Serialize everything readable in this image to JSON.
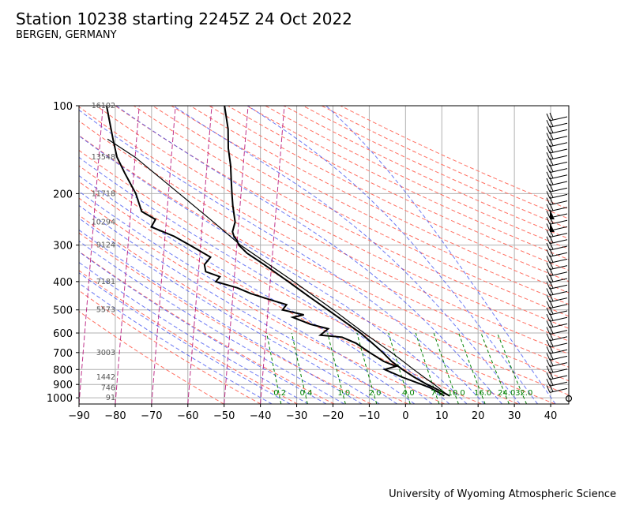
{
  "header": {
    "title": "Station 10238 starting 2245Z 24 Oct 2022",
    "subtitle": "BERGEN, GERMANY"
  },
  "footer": {
    "credit": "University of Wyoming Atmospheric Science"
  },
  "colors": {
    "grid": "#b0b0b0",
    "dry_adiabat": "#ff6f61",
    "moist_adiabat": "#3b4cf0",
    "mixing_ratio": "#008000",
    "isotherm": "#b0006e",
    "profile": "#000000",
    "height_label": "#555555"
  },
  "chart_data": {
    "type": "skew-t",
    "xlim": [
      -90,
      45
    ],
    "ylim_hpa": [
      1050,
      100
    ],
    "y_scale": "log",
    "grid": true,
    "x_ticks": [
      -90,
      -80,
      -70,
      -60,
      -50,
      -40,
      -30,
      -20,
      -10,
      0,
      10,
      20,
      30,
      40
    ],
    "x_tick_labels": [
      "−90",
      "−80",
      "−70",
      "−60",
      "−50",
      "−40",
      "−30",
      "−20",
      "−10",
      "0",
      "10",
      "20",
      "30",
      "40"
    ],
    "y_ticks": [
      100,
      200,
      300,
      400,
      500,
      600,
      700,
      800,
      900,
      1000
    ],
    "y_tick_labels": [
      "100",
      "200",
      "300",
      "400",
      "500",
      "600",
      "700",
      "800",
      "900",
      "1000"
    ],
    "height_labels": [
      {
        "p": 100,
        "text": "16102"
      },
      {
        "p": 150,
        "text": "13548"
      },
      {
        "p": 200,
        "text": "11718"
      },
      {
        "p": 250,
        "text": "10294"
      },
      {
        "p": 300,
        "text": "9124"
      },
      {
        "p": 400,
        "text": "7181"
      },
      {
        "p": 500,
        "text": "5573"
      },
      {
        "p": 700,
        "text": "3003"
      },
      {
        "p": 850,
        "text": "1442"
      },
      {
        "p": 925,
        "text": "746"
      },
      {
        "p": 1000,
        "text": "91"
      }
    ],
    "mixing_ratio_labels": [
      "0.2",
      "0.4",
      "1.0",
      "2.0",
      "4.0",
      "7.0",
      "10.0",
      "16.0",
      "24.0",
      "32.0"
    ],
    "temperature": [
      {
        "p": 985,
        "t": 12.0
      },
      {
        "p": 960,
        "t": 10.2
      },
      {
        "p": 925,
        "t": 7.6
      },
      {
        "p": 900,
        "t": 5.5
      },
      {
        "p": 850,
        "t": 1.8
      },
      {
        "p": 800,
        "t": -1.6
      },
      {
        "p": 750,
        "t": -4.8
      },
      {
        "p": 700,
        "t": -7.4
      },
      {
        "p": 650,
        "t": -10.5
      },
      {
        "p": 600,
        "t": -14.0
      },
      {
        "p": 550,
        "t": -18.5
      },
      {
        "p": 500,
        "t": -23.5
      },
      {
        "p": 450,
        "t": -29.0
      },
      {
        "p": 400,
        "t": -35.0
      },
      {
        "p": 350,
        "t": -42.0
      },
      {
        "p": 320,
        "t": -47.0
      },
      {
        "p": 300,
        "t": -49.5
      },
      {
        "p": 290,
        "t": -50.0
      },
      {
        "p": 280,
        "t": -51.0
      },
      {
        "p": 270,
        "t": -51.5
      },
      {
        "p": 250,
        "t": -51.0
      },
      {
        "p": 220,
        "t": -52.0
      },
      {
        "p": 200,
        "t": -52.5
      },
      {
        "p": 180,
        "t": -53.0
      },
      {
        "p": 160,
        "t": -53.5
      },
      {
        "p": 140,
        "t": -54.5
      },
      {
        "p": 120,
        "t": -55.0
      },
      {
        "p": 100,
        "t": -56.5
      }
    ],
    "dewpoint": [
      {
        "p": 985,
        "t": 10.5
      },
      {
        "p": 960,
        "t": 9.0
      },
      {
        "p": 925,
        "t": 6.5
      },
      {
        "p": 900,
        "t": 4.0
      },
      {
        "p": 850,
        "t": -1.5
      },
      {
        "p": 800,
        "t": -6.5
      },
      {
        "p": 780,
        "t": -3.5
      },
      {
        "p": 750,
        "t": -7.0
      },
      {
        "p": 700,
        "t": -11.0
      },
      {
        "p": 650,
        "t": -15.0
      },
      {
        "p": 620,
        "t": -19.0
      },
      {
        "p": 610,
        "t": -25.0
      },
      {
        "p": 580,
        "t": -23.0
      },
      {
        "p": 560,
        "t": -28.0
      },
      {
        "p": 530,
        "t": -33.0
      },
      {
        "p": 520,
        "t": -30.0
      },
      {
        "p": 500,
        "t": -36.0
      },
      {
        "p": 480,
        "t": -35.0
      },
      {
        "p": 460,
        "t": -40.0
      },
      {
        "p": 440,
        "t": -45.0
      },
      {
        "p": 420,
        "t": -49.0
      },
      {
        "p": 400,
        "t": -55.0
      },
      {
        "p": 385,
        "t": -54.0
      },
      {
        "p": 370,
        "t": -58.0
      },
      {
        "p": 350,
        "t": -58.5
      },
      {
        "p": 330,
        "t": -57.0
      },
      {
        "p": 300,
        "t": -63.0
      },
      {
        "p": 280,
        "t": -67.5
      },
      {
        "p": 260,
        "t": -74.0
      },
      {
        "p": 245,
        "t": -73.0
      },
      {
        "p": 230,
        "t": -77.0
      },
      {
        "p": 200,
        "t": -79.0
      },
      {
        "p": 170,
        "t": -82.5
      },
      {
        "p": 150,
        "t": -85.0
      },
      {
        "p": 130,
        "t": -86.5
      },
      {
        "p": 100,
        "t": -89.0
      }
    ],
    "parcel": [
      {
        "p": 985,
        "t": 12.0
      },
      {
        "p": 960,
        "t": 10.5
      },
      {
        "p": 900,
        "t": 7.5
      },
      {
        "p": 850,
        "t": 4.5
      },
      {
        "p": 800,
        "t": 1.5
      },
      {
        "p": 700,
        "t": -5.0
      },
      {
        "p": 600,
        "t": -13.0
      },
      {
        "p": 500,
        "t": -22.0
      },
      {
        "p": 400,
        "t": -33.5
      },
      {
        "p": 300,
        "t": -49.0
      },
      {
        "p": 250,
        "t": -57.0
      },
      {
        "p": 200,
        "t": -67.0
      },
      {
        "p": 150,
        "t": -80.0
      },
      {
        "p": 130,
        "t": -88.0
      }
    ]
  }
}
